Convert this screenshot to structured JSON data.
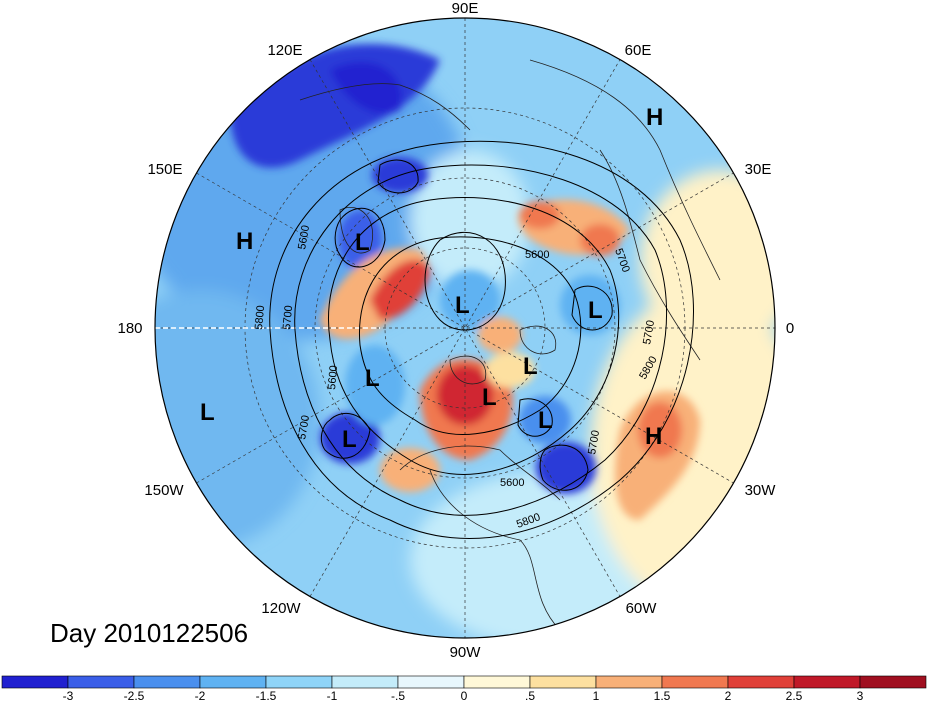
{
  "title": "Day 2010122506",
  "longitude_labels": {
    "lon_90E": "90E",
    "lon_60E": "60E",
    "lon_30E": "30E",
    "lon_0": "0",
    "lon_30W": "30W",
    "lon_60W": "60W",
    "lon_90W": "90W",
    "lon_120W": "120W",
    "lon_150W": "150W",
    "lon_180": "180",
    "lon_150E": "150E",
    "lon_120E": "120E"
  },
  "pressure_centers": [
    {
      "label": "H"
    },
    {
      "label": "H"
    },
    {
      "label": "H"
    },
    {
      "label": "L"
    },
    {
      "label": "L"
    },
    {
      "label": "L"
    },
    {
      "label": "L"
    },
    {
      "label": "L"
    },
    {
      "label": "L"
    },
    {
      "label": "L"
    },
    {
      "label": "L"
    },
    {
      "label": "L"
    }
  ],
  "contour_labels": [
    "5600",
    "5700",
    "5800",
    "5600",
    "5700",
    "5600",
    "5700",
    "5700",
    "5800",
    "5700",
    "5600",
    "5800"
  ],
  "colorbar": {
    "ticks": [
      "-3",
      "-2.5",
      "-2",
      "-1.5",
      "-1",
      "-.5",
      "0",
      ".5",
      "1",
      "1.5",
      "2",
      "2.5",
      "3"
    ],
    "colors": [
      "#2020d0",
      "#3a5ee8",
      "#4a8fee",
      "#5fb2f2",
      "#8fd4f8",
      "#c4ecfa",
      "#e8f7fd",
      "#fff8d8",
      "#fde0a0",
      "#f8b078",
      "#f07850",
      "#e04038",
      "#c01828",
      "#a00f20"
    ]
  }
}
